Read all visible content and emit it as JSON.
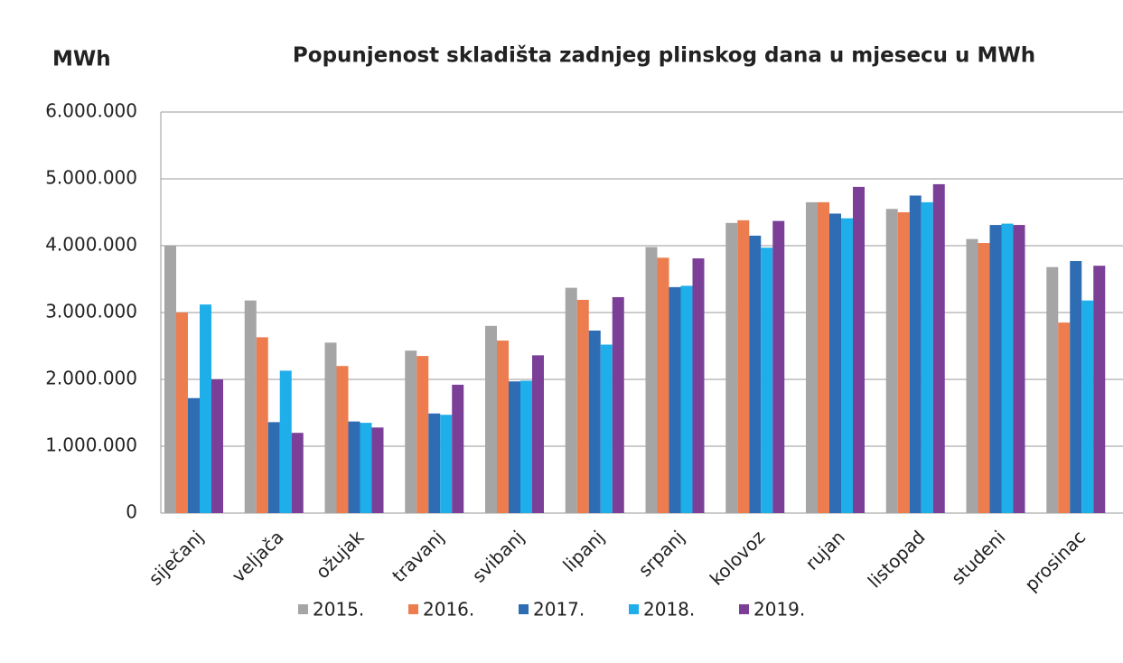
{
  "chart_data": {
    "type": "bar",
    "title": "Popunjenost skladišta zadnjeg plinskog dana u mjesecu u MWh",
    "y_label": "MWh",
    "categories": [
      "siječanj",
      "veljača",
      "ožujak",
      "travanj",
      "svibanj",
      "lipanj",
      "srpanj",
      "kolovoz",
      "rujan",
      "listopad",
      "studeni",
      "prosinac"
    ],
    "series": [
      {
        "name": "2015.",
        "color": "#a5a5a5",
        "values": [
          4000000,
          3180000,
          2550000,
          2430000,
          2800000,
          3370000,
          3980000,
          4340000,
          4650000,
          4550000,
          4100000,
          3680000
        ]
      },
      {
        "name": "2016.",
        "color": "#ed7d4f",
        "values": [
          3000000,
          2630000,
          2200000,
          2350000,
          2580000,
          3190000,
          3820000,
          4380000,
          4650000,
          4500000,
          4040000,
          2850000
        ]
      },
      {
        "name": "2017.",
        "color": "#2e6db4",
        "values": [
          1720000,
          1360000,
          1370000,
          1490000,
          1970000,
          2730000,
          3380000,
          4150000,
          4480000,
          4750000,
          4310000,
          3770000
        ]
      },
      {
        "name": "2018.",
        "color": "#1eaeea",
        "values": [
          3120000,
          2130000,
          1350000,
          1470000,
          1980000,
          2520000,
          3400000,
          3970000,
          4410000,
          4650000,
          4330000,
          3180000
        ]
      },
      {
        "name": "2019.",
        "color": "#7b3f98",
        "values": [
          2000000,
          1200000,
          1280000,
          1920000,
          2360000,
          3230000,
          3810000,
          4370000,
          4880000,
          4920000,
          4310000,
          3700000
        ]
      }
    ],
    "ylim": [
      0,
      6000000
    ],
    "yticks": [
      0,
      {
        "value": 1000000,
        "label": "1.000.000"
      },
      {
        "value": 2000000,
        "label": "2.000.000"
      },
      {
        "value": 3000000,
        "label": "3.000.000"
      },
      {
        "value": 4000000,
        "label": "4.000.000"
      },
      {
        "value": 5000000,
        "label": "5.000.000"
      },
      {
        "value": 6000000,
        "label": "6.000.000"
      }
    ],
    "grid": true,
    "legend": "bottom"
  }
}
